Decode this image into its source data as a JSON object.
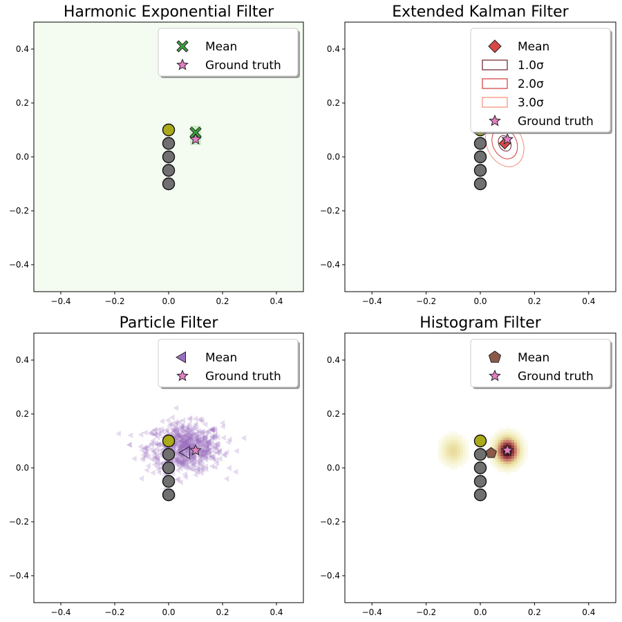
{
  "figure": {
    "layout": "2x2 grid of filter comparison plots"
  },
  "chart_data": [
    {
      "type": "scatter",
      "title": "Harmonic Exponential Filter",
      "xlim": [
        -0.5,
        0.5
      ],
      "ylim": [
        -0.5,
        0.5
      ],
      "xticks": [
        "−0.4",
        "−0.2",
        "0.0",
        "0.2",
        "0.4"
      ],
      "yticks": [
        "−0.4",
        "−0.2",
        "0.0",
        "0.2",
        "0.4"
      ],
      "background_color": "#f4fbf1",
      "density_blob": {
        "x": 0.1,
        "y": 0.08,
        "color": "#b7e2b1"
      },
      "landmarks": [
        {
          "x": 0.0,
          "y": 0.1,
          "color": "#aaaa1a"
        },
        {
          "x": 0.0,
          "y": 0.05,
          "color": "#707070"
        },
        {
          "x": 0.0,
          "y": 0.0,
          "color": "#707070"
        },
        {
          "x": 0.0,
          "y": -0.05,
          "color": "#707070"
        },
        {
          "x": 0.0,
          "y": -0.1,
          "color": "#707070"
        }
      ],
      "mean": {
        "x": 0.1,
        "y": 0.09,
        "marker": "X",
        "color": "#3da33d"
      },
      "ground_truth": {
        "x": 0.1,
        "y": 0.065,
        "marker": "star",
        "color": "#e27fc4"
      },
      "legend": [
        "Mean",
        "Ground truth"
      ],
      "legend_loc": "upper right"
    },
    {
      "type": "scatter",
      "title": "Extended Kalman Filter",
      "xlim": [
        -0.5,
        0.5
      ],
      "ylim": [
        -0.5,
        0.5
      ],
      "xticks": [
        "−0.4",
        "−0.2",
        "0.0",
        "0.2",
        "0.4"
      ],
      "yticks": [
        "−0.4",
        "−0.2",
        "0.0",
        "0.2",
        "0.4"
      ],
      "landmarks": [
        {
          "x": 0.0,
          "y": 0.1,
          "color": "#aaaa1a"
        },
        {
          "x": 0.0,
          "y": 0.05,
          "color": "#707070"
        },
        {
          "x": 0.0,
          "y": 0.0,
          "color": "#707070"
        },
        {
          "x": 0.0,
          "y": -0.05,
          "color": "#707070"
        },
        {
          "x": 0.0,
          "y": -0.1,
          "color": "#707070"
        }
      ],
      "mean": {
        "x": 0.09,
        "y": 0.05,
        "marker": "diamond",
        "color": "#d94848"
      },
      "ground_truth": {
        "x": 0.1,
        "y": 0.065,
        "marker": "star",
        "color": "#e27fc4"
      },
      "ellipses": [
        {
          "label": "1.0σ",
          "sx": 0.022,
          "sy": 0.03,
          "color": "#6b1a28"
        },
        {
          "label": "2.0σ",
          "sx": 0.044,
          "sy": 0.06,
          "color": "#d23a3a"
        },
        {
          "label": "3.0σ",
          "sx": 0.066,
          "sy": 0.09,
          "color": "#f28c74"
        }
      ],
      "legend": [
        "Mean",
        "1.0σ",
        "2.0σ",
        "3.0σ",
        "Ground truth"
      ],
      "legend_loc": "upper right"
    },
    {
      "type": "scatter",
      "title": "Particle Filter",
      "xlim": [
        -0.5,
        0.5
      ],
      "ylim": [
        -0.5,
        0.5
      ],
      "xticks": [
        "−0.4",
        "−0.2",
        "0.0",
        "0.2",
        "0.4"
      ],
      "yticks": [
        "−0.4",
        "−0.2",
        "0.0",
        "0.2",
        "0.4"
      ],
      "particles": {
        "center_x": 0.06,
        "center_y": 0.075,
        "spread_x": 0.07,
        "spread_y": 0.045,
        "count": 700,
        "color": "#9a6fc0"
      },
      "landmarks": [
        {
          "x": 0.0,
          "y": 0.1,
          "color": "#aaaa1a"
        },
        {
          "x": 0.0,
          "y": 0.05,
          "color": "#707070"
        },
        {
          "x": 0.0,
          "y": 0.0,
          "color": "#707070"
        },
        {
          "x": 0.0,
          "y": -0.05,
          "color": "#707070"
        },
        {
          "x": 0.0,
          "y": -0.1,
          "color": "#707070"
        }
      ],
      "mean": {
        "x": 0.065,
        "y": 0.057,
        "marker": "triangle-left",
        "color": "#9a6fc0"
      },
      "ground_truth": {
        "x": 0.1,
        "y": 0.065,
        "marker": "star",
        "color": "#e27fc4"
      },
      "legend": [
        "Mean",
        "Ground truth"
      ],
      "legend_loc": "upper right"
    },
    {
      "type": "heatmap",
      "title": "Histogram Filter",
      "xlim": [
        -0.5,
        0.5
      ],
      "ylim": [
        -0.5,
        0.5
      ],
      "xticks": [
        "−0.4",
        "−0.2",
        "0.0",
        "0.2",
        "0.4"
      ],
      "yticks": [
        "−0.4",
        "−0.2",
        "0.0",
        "0.2",
        "0.4"
      ],
      "density_peaks": [
        {
          "x": -0.1,
          "y": 0.065,
          "strength": 0.35
        },
        {
          "x": 0.1,
          "y": 0.065,
          "strength": 1.0
        }
      ],
      "landmarks": [
        {
          "x": 0.0,
          "y": 0.1,
          "color": "#aaaa1a"
        },
        {
          "x": 0.0,
          "y": 0.05,
          "color": "#707070"
        },
        {
          "x": 0.0,
          "y": 0.0,
          "color": "#707070"
        },
        {
          "x": 0.0,
          "y": -0.05,
          "color": "#707070"
        },
        {
          "x": 0.0,
          "y": -0.1,
          "color": "#707070"
        }
      ],
      "mean": {
        "x": 0.04,
        "y": 0.055,
        "marker": "pentagon",
        "color": "#8c5a4a"
      },
      "ground_truth": {
        "x": 0.1,
        "y": 0.065,
        "marker": "star",
        "color": "#e27fc4"
      },
      "legend": [
        "Mean",
        "Ground truth"
      ],
      "legend_loc": "upper right"
    }
  ]
}
